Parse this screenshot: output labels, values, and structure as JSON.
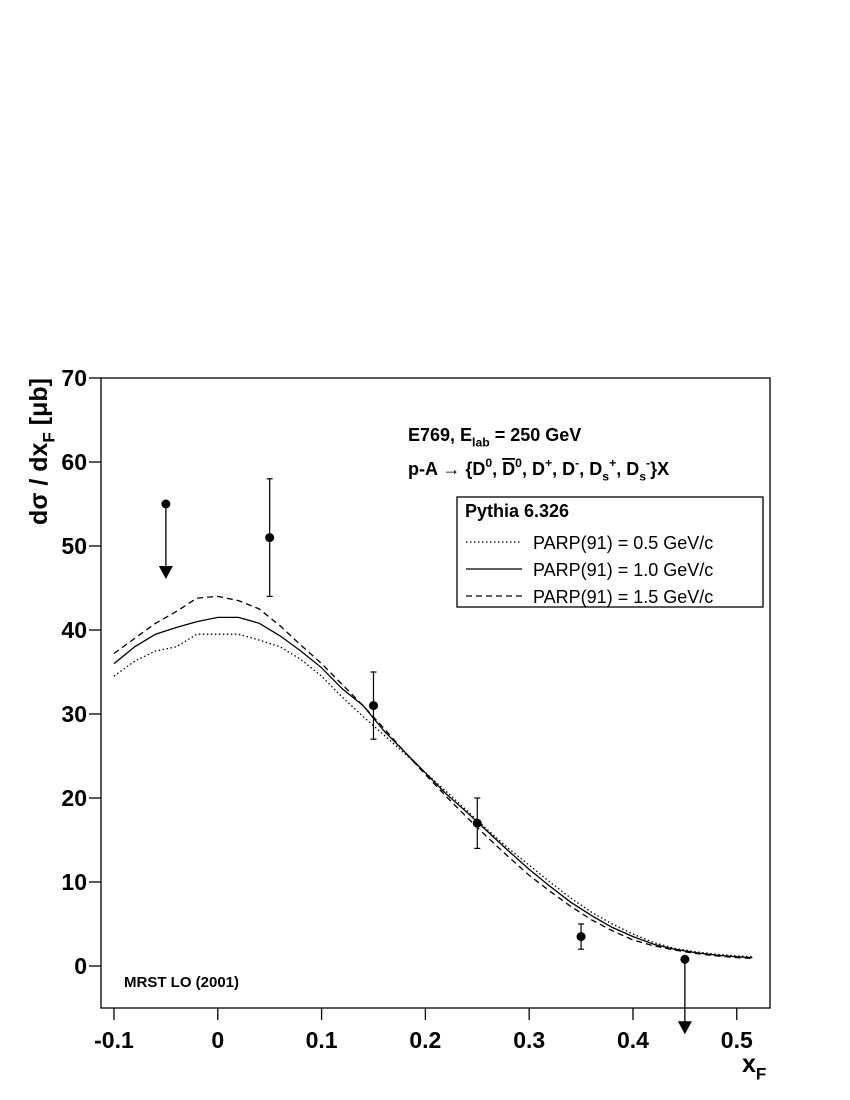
{
  "chart_data": {
    "type": "line",
    "xlabel": [
      {
        "text": "x"
      },
      {
        "sub": "F"
      }
    ],
    "ylabel": [
      {
        "text": "dσ / dx"
      },
      {
        "sub": "F"
      },
      {
        "text": " [μb]"
      }
    ],
    "annotations": [
      {
        "parts": [
          {
            "text": "E769, E"
          },
          {
            "sub": "lab"
          },
          {
            "text": " = 250 GeV"
          }
        ]
      },
      {
        "parts": [
          {
            "text": "p-A → {D"
          },
          {
            "sup": "0"
          },
          {
            "text": ", "
          },
          {
            "over": "D"
          },
          {
            "sup": "0"
          },
          {
            "text": ", D"
          },
          {
            "sup": "+"
          },
          {
            "text": ", D"
          },
          {
            "sup": "-"
          },
          {
            "text": ", D"
          },
          {
            "sub": "s"
          },
          {
            "sup": "+"
          },
          {
            "text": ", D"
          },
          {
            "sub": "s"
          },
          {
            "sup": "-"
          },
          {
            "text": "}X"
          }
        ]
      },
      {
        "parts": [
          {
            "text": "MRST LO (2001)"
          }
        ]
      }
    ],
    "legend_title": "Pythia 6.326",
    "legend": "upper-right",
    "xlim": [
      -0.1125,
      0.532
    ],
    "ylim": [
      -5,
      70
    ],
    "xticks": [
      -0.1,
      0,
      0.1,
      0.2,
      0.3,
      0.4,
      0.5
    ],
    "yticks": [
      0,
      10,
      20,
      30,
      40,
      50,
      60,
      70
    ],
    "x": [
      -0.1,
      -0.08,
      -0.06,
      -0.04,
      -0.02,
      0,
      0.02,
      0.04,
      0.06,
      0.08,
      0.1,
      0.12,
      0.14,
      0.16,
      0.18,
      0.2,
      0.22,
      0.24,
      0.26,
      0.28,
      0.3,
      0.32,
      0.34,
      0.36,
      0.38,
      0.4,
      0.42,
      0.44,
      0.46,
      0.48,
      0.5,
      0.515
    ],
    "series": [
      {
        "name": "PARP(91) = 0.5 GeV/c",
        "color": "#000000",
        "dash": "dotted",
        "values": [
          34.5,
          36.3,
          37.5,
          38,
          39.5,
          39.5,
          39.5,
          38.8,
          38,
          36.5,
          34.5,
          32,
          29.7,
          27.5,
          25.3,
          23,
          20.8,
          18.5,
          16.2,
          14,
          12,
          10,
          8.1,
          6.4,
          5,
          3.8,
          2.8,
          2.1,
          1.7,
          1.4,
          1.2,
          1.1
        ]
      },
      {
        "name": "PARP(91) = 1.0 GeV/c",
        "color": "#000000",
        "dash": "solid",
        "values": [
          36,
          38,
          39.5,
          40.3,
          41,
          41.5,
          41.5,
          40.8,
          39.3,
          37.5,
          35.5,
          33,
          31,
          28,
          25.5,
          23,
          20.5,
          18.3,
          16,
          13.7,
          11.5,
          9.5,
          7.6,
          6,
          4.6,
          3.5,
          2.6,
          2,
          1.6,
          1.3,
          1.1,
          1.0
        ]
      },
      {
        "name": "PARP(91) = 1.5 GeV/c",
        "color": "#000000",
        "dash": "dashed",
        "values": [
          37.2,
          39,
          40.8,
          42.2,
          43.8,
          44,
          43.5,
          42.5,
          40.5,
          38.2,
          36,
          33.5,
          31,
          28.3,
          25.5,
          22.8,
          20.2,
          17.7,
          15.3,
          13,
          10.8,
          8.9,
          7.1,
          5.5,
          4.2,
          3.1,
          2.4,
          1.9,
          1.5,
          1.2,
          1.0,
          0.9
        ]
      }
    ],
    "points": {
      "color": "#000000",
      "x": [
        -0.05,
        0.05,
        0.15,
        0.25,
        0.35,
        0.45
      ],
      "values": [
        55,
        51,
        31,
        17,
        3.5,
        0.8
      ],
      "errors": [
        null,
        7,
        4,
        3,
        1.5,
        null
      ],
      "upper_limit": [
        true,
        false,
        false,
        false,
        false,
        true
      ]
    }
  }
}
